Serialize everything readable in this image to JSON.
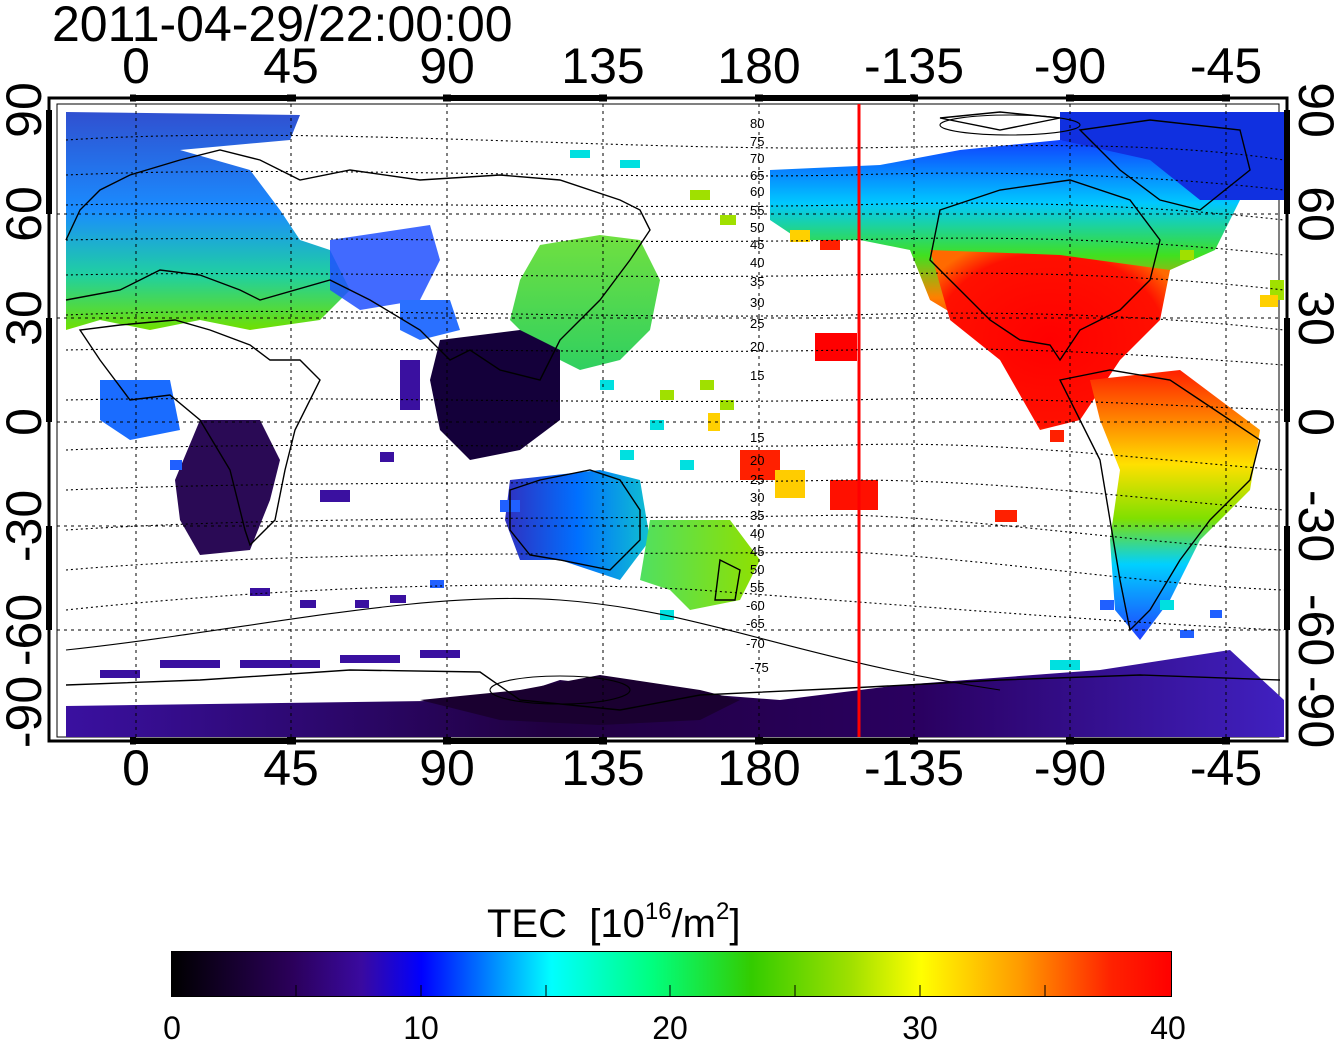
{
  "title": "2011-04-29/22:00:00",
  "lon_ticks": [
    "0",
    "45",
    "90",
    "135",
    "180",
    "-135",
    "-90",
    "-45"
  ],
  "lat_ticks": [
    "90",
    "60",
    "30",
    "0",
    "-30",
    "-60",
    "-90"
  ],
  "contour_labels": [
    "80",
    "75",
    "70",
    "65",
    "60",
    "55",
    "50",
    "45",
    "40",
    "35",
    "30",
    "25",
    "20",
    "15",
    "15",
    "20",
    "25",
    "30",
    "35",
    "40",
    "45",
    "50",
    "55",
    "-60",
    "-65",
    "-70",
    "-75"
  ],
  "colorbar": {
    "title_main": "TEC",
    "title_unit_pre": "[10",
    "title_unit_exp": "16",
    "title_unit_mid": "/m",
    "title_unit_exp2": "2",
    "title_unit_post": "]",
    "ticks": [
      "0",
      "10",
      "20",
      "30",
      "40"
    ]
  },
  "colors": {
    "terminator": "#ff0000",
    "frame": "#000000",
    "grid": "#000000"
  }
}
